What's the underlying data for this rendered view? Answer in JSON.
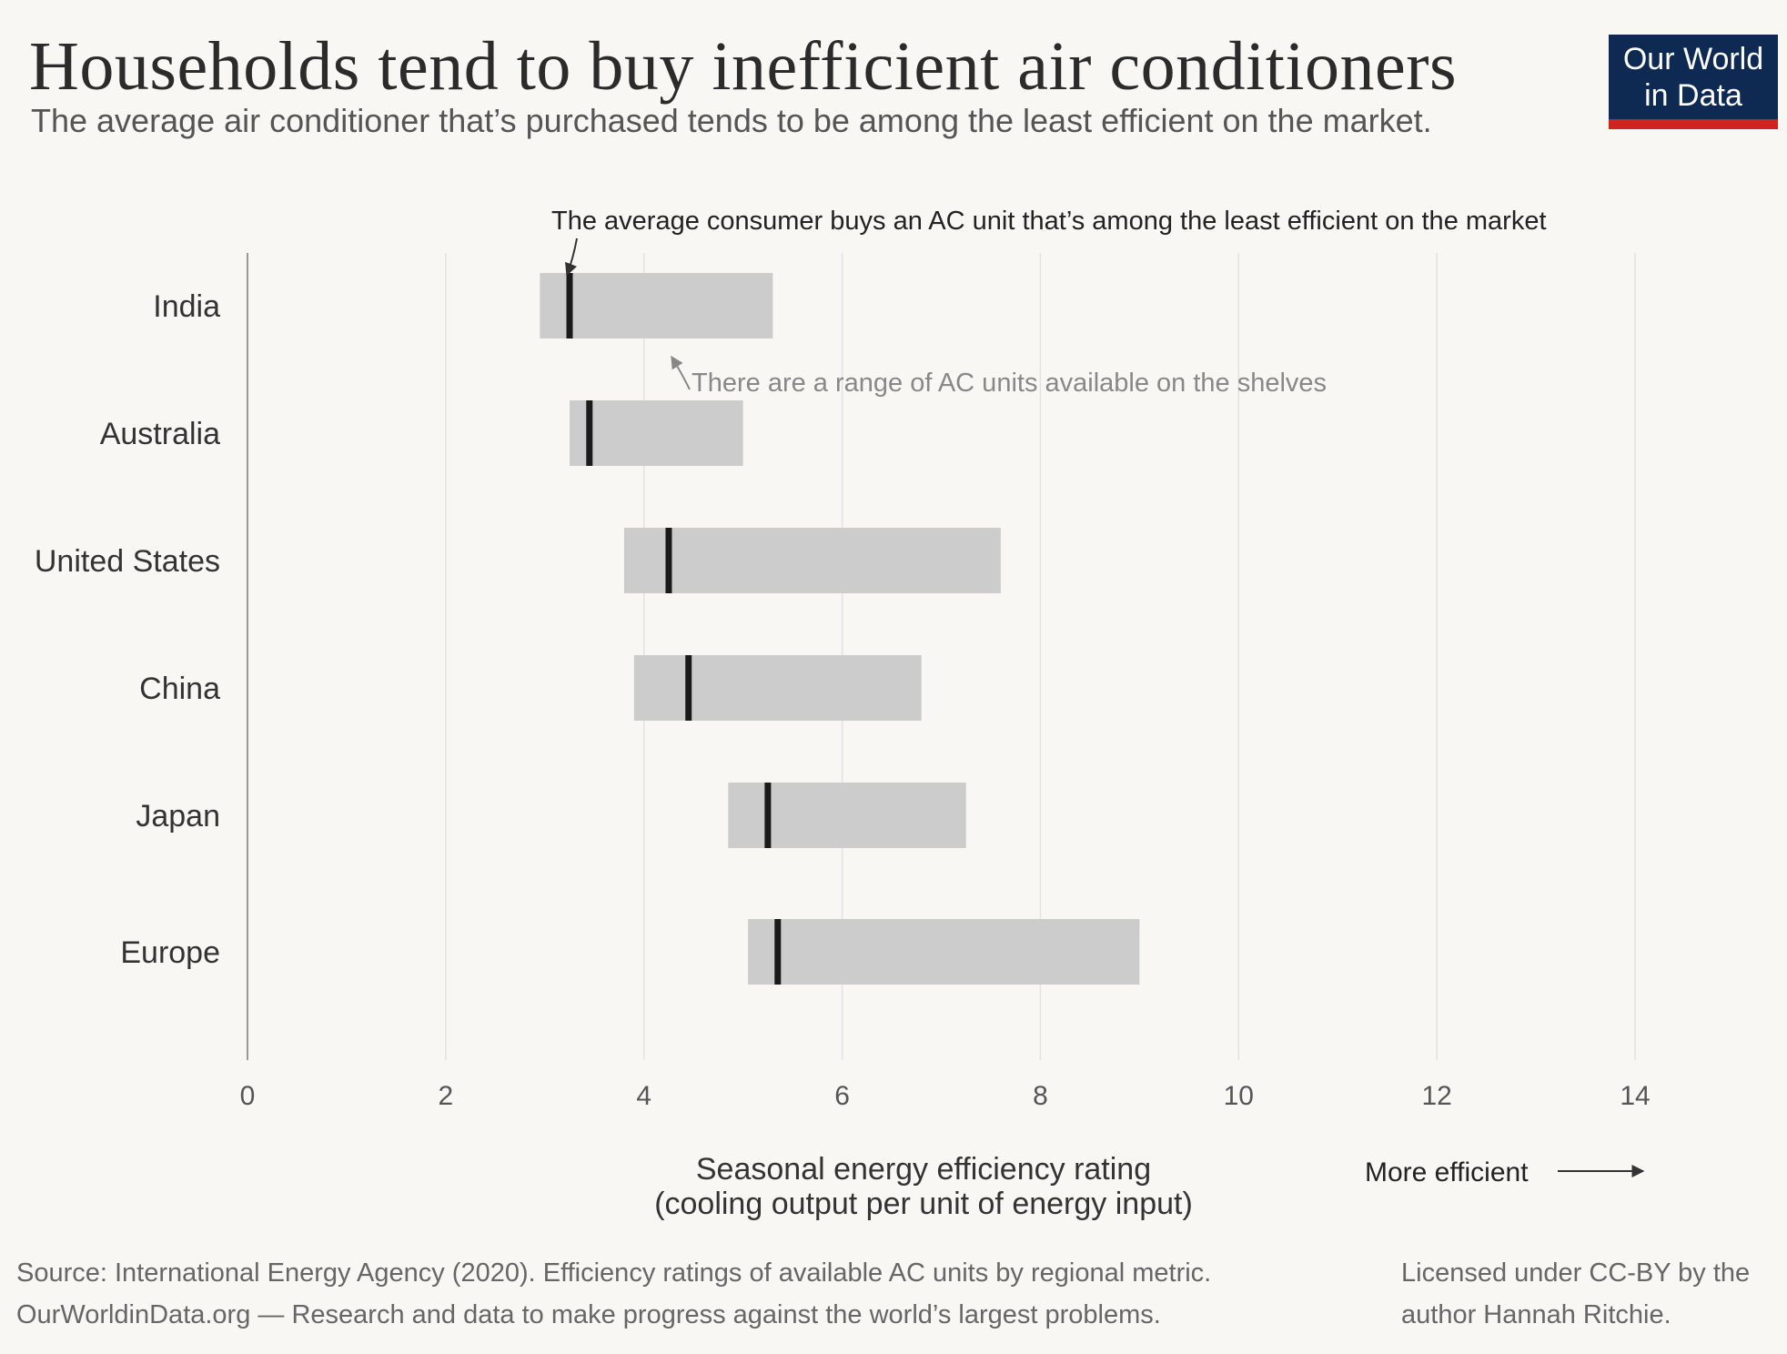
{
  "title": "Households tend to buy inefficient air conditioners",
  "subtitle": "The average air conditioner that’s purchased tends to be among the least efficient on the market.",
  "logo": {
    "line1": "Our World",
    "line2": "in Data",
    "colors": {
      "background": "#0f2a52",
      "accent": "#ce261e"
    }
  },
  "chart_data": {
    "type": "bar",
    "categories": [
      "India",
      "Australia",
      "United States",
      "China",
      "Japan",
      "Europe"
    ],
    "series": [
      {
        "range_min": [
          2.95,
          3.25,
          3.8,
          3.9,
          4.85,
          5.05
        ],
        "range_max": [
          5.3,
          5.0,
          7.6,
          6.8,
          7.25,
          9.0
        ]
      },
      {
        "average": [
          3.25,
          3.45,
          4.25,
          4.45,
          5.25,
          5.35
        ]
      }
    ],
    "xlim": [
      0,
      14
    ],
    "xticks": [
      "0",
      "2",
      "4",
      "6",
      "8",
      "10",
      "12",
      "14"
    ],
    "xlabel_line1": "Seasonal energy efficiency rating",
    "xlabel_line2": "(cooling output per unit of energy input)",
    "direction_label": "More efficient",
    "annotations": {
      "average": "The average consumer buys an AC unit that’s among the least efficient on the market",
      "range": "There are a range of AC units available on the shelves"
    },
    "grid": true,
    "colors": {
      "range_bar": "#cccccc",
      "average_marker": "#1a1a1a",
      "grid": "#e2e2e2"
    }
  },
  "footer": {
    "source": "Source: International Energy Agency (2020). Efficiency ratings of available AC units by regional metric.",
    "site": "OurWorldinData.org — Research and data to make progress against the world’s largest problems.",
    "license_line1": "Licensed under CC-BY by the",
    "license_line2": "author Hannah Ritchie."
  }
}
